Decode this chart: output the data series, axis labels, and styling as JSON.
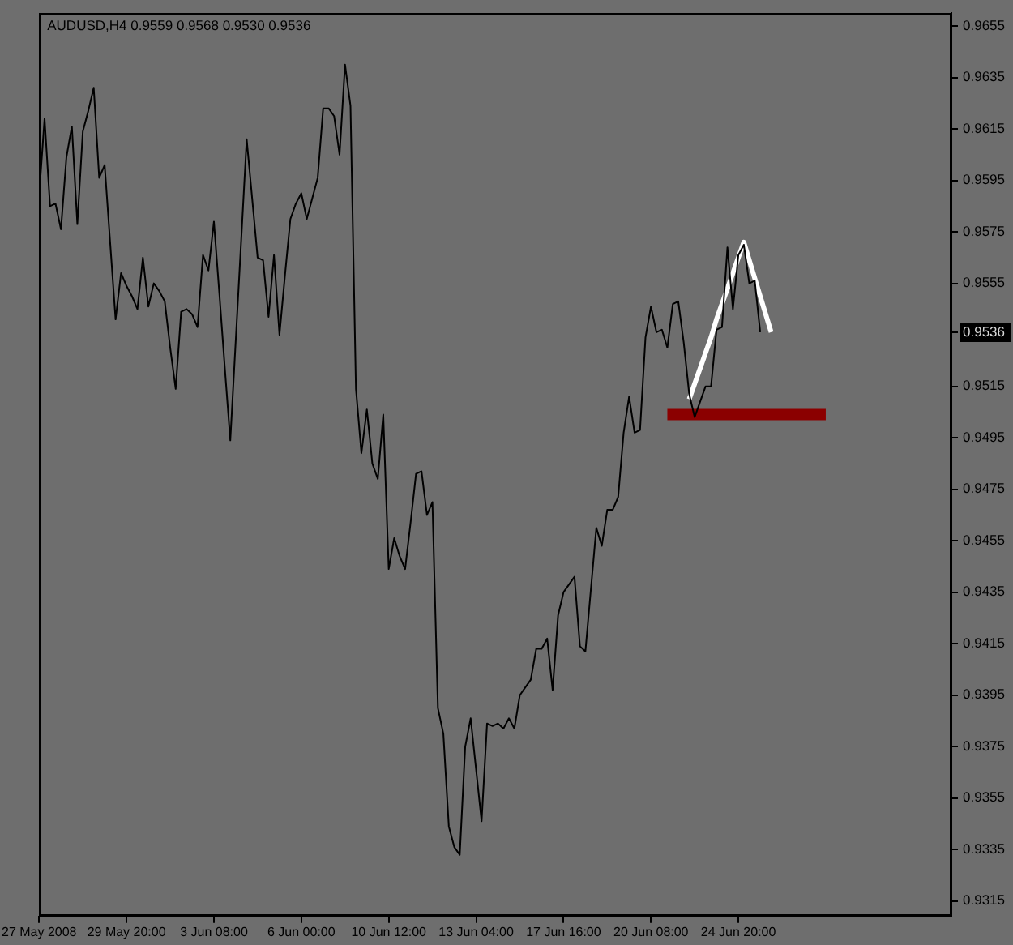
{
  "chart_data": {
    "type": "line",
    "title": "AUDUSD,H4 0.9559 0.9568 0.9530 0.9536",
    "categories": [
      "27 May 2008",
      null,
      null,
      null,
      null,
      null,
      null,
      null,
      null,
      null,
      null,
      null,
      null,
      null,
      null,
      null,
      "29 May 20:00",
      null,
      null,
      null,
      null,
      null,
      null,
      null,
      null,
      null,
      null,
      null,
      null,
      null,
      null,
      null,
      "3 Jun 08:00",
      null,
      null,
      null,
      null,
      null,
      null,
      null,
      null,
      null,
      null,
      null,
      null,
      null,
      null,
      null,
      "6 Jun 00:00",
      null,
      null,
      null,
      null,
      null,
      null,
      null,
      null,
      null,
      null,
      null,
      null,
      null,
      null,
      null,
      "10 Jun 12:00",
      null,
      null,
      null,
      null,
      null,
      null,
      null,
      null,
      null,
      null,
      null,
      null,
      null,
      null,
      null,
      "13 Jun 04:00",
      null,
      null,
      null,
      null,
      null,
      null,
      null,
      null,
      null,
      null,
      null,
      null,
      null,
      null,
      null,
      "17 Jun 16:00",
      null,
      null,
      null,
      null,
      null,
      null,
      null,
      null,
      null,
      null,
      null,
      null,
      null,
      null,
      null,
      "20 Jun 08:00",
      null,
      null,
      null,
      null,
      null,
      null,
      null,
      null,
      null,
      null,
      null,
      null,
      null,
      null,
      null,
      "24 Jun 20:00",
      null,
      null,
      null,
      null,
      null,
      null,
      null,
      null,
      null,
      null,
      null,
      null,
      null,
      null,
      null,
      null,
      null,
      null,
      null,
      null,
      null,
      null,
      null,
      null,
      null,
      null,
      null,
      null,
      null,
      null,
      null,
      null,
      null,
      null,
      null,
      null,
      null,
      null,
      null
    ],
    "series": [
      {
        "color": "#000000",
        "values": [
          0.9589,
          0.9619,
          0.9585,
          0.9586,
          0.9576,
          0.9604,
          0.9616,
          0.9578,
          0.9614,
          0.9622,
          0.9631,
          0.9596,
          0.9601,
          0.9571,
          0.9541,
          0.9559,
          0.9554,
          0.955,
          0.9545,
          0.9565,
          0.9546,
          0.9555,
          0.9552,
          0.9548,
          0.953,
          0.9514,
          0.9544,
          0.9545,
          0.9543,
          0.9538,
          0.9566,
          0.956,
          0.9579,
          0.9551,
          0.9522,
          0.9494,
          0.9533,
          0.9572,
          0.9611,
          0.9588,
          0.9565,
          0.9564,
          0.9542,
          0.9566,
          0.9535,
          0.9558,
          0.958,
          0.9586,
          0.959,
          0.958,
          0.9588,
          0.9596,
          0.9623,
          0.9623,
          0.962,
          0.9605,
          0.964,
          0.9624,
          0.9514,
          0.9489,
          0.9506,
          0.9485,
          0.9479,
          0.9504,
          0.9444,
          0.9456,
          0.9449,
          0.9444,
          0.9462,
          0.9481,
          0.9482,
          0.9465,
          0.947,
          0.939,
          0.938,
          0.9344,
          0.9336,
          0.9333,
          0.9375,
          0.9386,
          0.9366,
          0.9346,
          0.9384,
          0.9383,
          0.9384,
          0.9382,
          0.9386,
          0.9382,
          0.9395,
          0.9398,
          0.9401,
          0.9413,
          0.9413,
          0.9417,
          0.9397,
          0.9426,
          0.9435,
          0.9438,
          0.9441,
          0.9414,
          0.9412,
          0.9436,
          0.946,
          0.9453,
          0.9467,
          0.9467,
          0.9472,
          0.9497,
          0.9511,
          0.9497,
          0.9498,
          0.9534,
          0.9546,
          0.9536,
          0.9537,
          0.953,
          0.9547,
          0.9548,
          0.9532,
          0.9512,
          0.9503,
          0.9509,
          0.9515,
          0.9515,
          0.9537,
          0.9538,
          0.9569,
          0.9545,
          0.9566,
          0.957,
          0.9555,
          0.9556,
          0.9536,
          null,
          null,
          null,
          null,
          null,
          null,
          null,
          null,
          null,
          null,
          null,
          null,
          null,
          null,
          null,
          null,
          null,
          null,
          null,
          null,
          null,
          null,
          null,
          null,
          null,
          null,
          null,
          null,
          null,
          null,
          null,
          null,
          null,
          null,
          null
        ]
      },
      {
        "color": "#ffffff",
        "values": [
          null,
          null,
          null,
          null,
          null,
          null,
          null,
          null,
          null,
          null,
          null,
          null,
          null,
          null,
          null,
          null,
          null,
          null,
          null,
          null,
          null,
          null,
          null,
          null,
          null,
          null,
          null,
          null,
          null,
          null,
          null,
          null,
          null,
          null,
          null,
          null,
          null,
          null,
          null,
          null,
          null,
          null,
          null,
          null,
          null,
          null,
          null,
          null,
          null,
          null,
          null,
          null,
          null,
          null,
          null,
          null,
          null,
          null,
          null,
          null,
          null,
          null,
          null,
          null,
          null,
          null,
          null,
          null,
          null,
          null,
          null,
          null,
          null,
          null,
          null,
          null,
          null,
          null,
          null,
          null,
          null,
          null,
          null,
          null,
          null,
          null,
          null,
          null,
          null,
          null,
          null,
          null,
          null,
          null,
          null,
          null,
          null,
          null,
          null,
          null,
          null,
          null,
          null,
          null,
          null,
          null,
          null,
          null,
          null,
          null,
          null,
          null,
          null,
          null,
          null,
          null,
          null,
          null,
          null,
          0.951,
          0.9516,
          0.9522,
          0.9528,
          0.9534,
          0.9541,
          0.9547,
          0.9553,
          0.9559,
          0.9565,
          0.9571,
          0.9564,
          0.9557,
          0.955,
          0.9543,
          0.9536,
          null,
          null,
          null,
          null,
          null,
          null,
          null,
          null,
          null,
          null,
          null,
          null,
          null,
          null,
          null,
          null,
          null,
          null,
          null,
          null,
          null,
          null,
          null,
          null,
          null,
          null,
          null,
          null,
          null,
          null,
          null,
          null,
          null
        ]
      },
      {
        "color": "#8b0000",
        "values": [
          null,
          null,
          null,
          null,
          null,
          null,
          null,
          null,
          null,
          null,
          null,
          null,
          null,
          null,
          null,
          null,
          null,
          null,
          null,
          null,
          null,
          null,
          null,
          null,
          null,
          null,
          null,
          null,
          null,
          null,
          null,
          null,
          null,
          null,
          null,
          null,
          null,
          null,
          null,
          null,
          null,
          null,
          null,
          null,
          null,
          null,
          null,
          null,
          null,
          null,
          null,
          null,
          null,
          null,
          null,
          null,
          null,
          null,
          null,
          null,
          null,
          null,
          null,
          null,
          null,
          null,
          null,
          null,
          null,
          null,
          null,
          null,
          null,
          null,
          null,
          null,
          null,
          null,
          null,
          null,
          null,
          null,
          null,
          null,
          null,
          null,
          null,
          null,
          null,
          null,
          null,
          null,
          null,
          null,
          null,
          null,
          null,
          null,
          null,
          null,
          null,
          null,
          null,
          null,
          null,
          null,
          null,
          null,
          null,
          null,
          null,
          null,
          null,
          null,
          null,
          0.9504,
          0.9504,
          0.9504,
          0.9504,
          0.9504,
          0.9504,
          0.9504,
          0.9504,
          0.9504,
          0.9504,
          0.9504,
          0.9504,
          0.9504,
          0.9504,
          0.9504,
          0.9504,
          0.9504,
          0.9504,
          0.9504,
          0.9504,
          0.9504,
          0.9504,
          0.9504,
          0.9504,
          0.9504,
          0.9504,
          0.9504,
          0.9504,
          0.9504,
          0.9504,
          null,
          null,
          null,
          null,
          null,
          null,
          null,
          null,
          null,
          null,
          null,
          null,
          null,
          null,
          null,
          null,
          null,
          null,
          null,
          null,
          null,
          null,
          null
        ]
      }
    ],
    "ylim": [
      0.9309,
      0.966
    ],
    "yticks": [
      0.9315,
      0.9335,
      0.9355,
      0.9375,
      0.9395,
      0.9415,
      0.9435,
      0.9455,
      0.9475,
      0.9495,
      0.9515,
      0.9536,
      0.9555,
      0.9575,
      0.9595,
      0.9615,
      0.9635,
      0.9655
    ],
    "marker": "none",
    "line_style": "solid"
  }
}
